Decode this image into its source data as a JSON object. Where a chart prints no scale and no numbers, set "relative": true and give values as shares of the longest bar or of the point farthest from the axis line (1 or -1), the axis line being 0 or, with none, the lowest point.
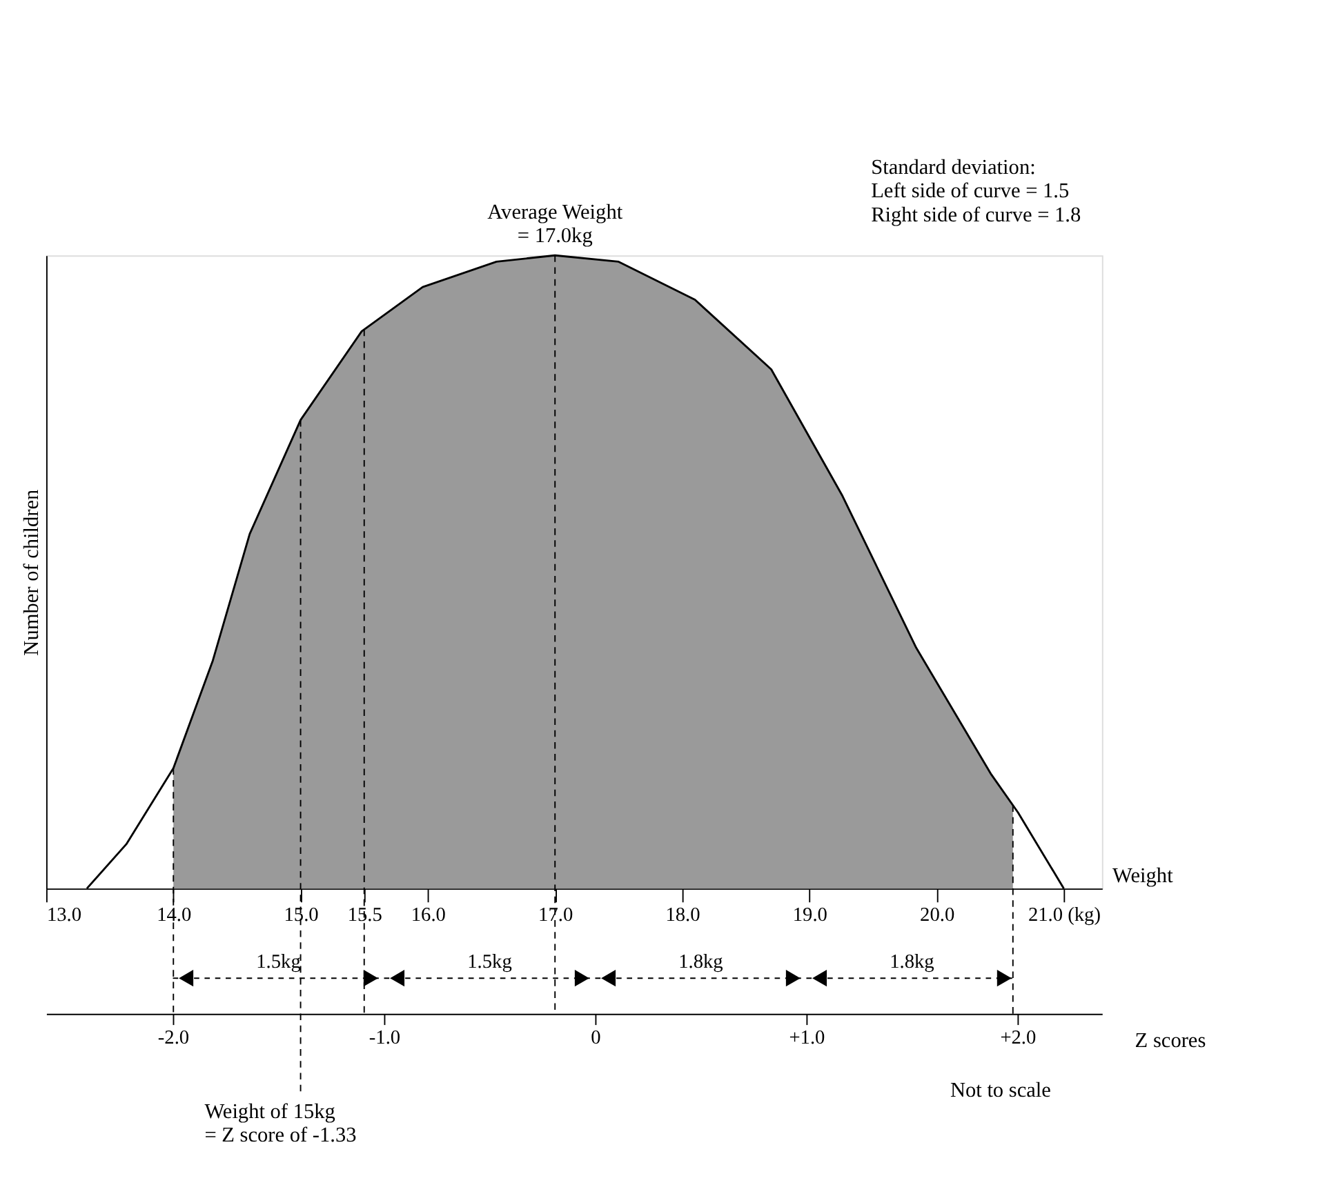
{
  "chart_data": {
    "type": "area",
    "relative": true,
    "xlabel": "Weight",
    "ylabel": "Number of children",
    "x2label": "Z scores",
    "xlim": [
      13.0,
      21.3
    ],
    "xticks": [
      {
        "value": 13.0,
        "label": "13.0"
      },
      {
        "value": 14.0,
        "label": "14.0"
      },
      {
        "value": 15.0,
        "label": "15.0"
      },
      {
        "value": 15.5,
        "label": "15.5"
      },
      {
        "value": 16.0,
        "label": "16.0"
      },
      {
        "value": 17.0,
        "label": "17.0"
      },
      {
        "value": 18.0,
        "label": "18.0"
      },
      {
        "value": 19.0,
        "label": "19.0"
      },
      {
        "value": 20.0,
        "label": "20.0"
      },
      {
        "value": 21.0,
        "label": "21.0 (kg)"
      }
    ],
    "x2lim": [
      -2.6,
      2.4
    ],
    "x2ticks": [
      {
        "value": -2.0,
        "label": "-2.0"
      },
      {
        "value": -1.0,
        "label": "-1.0"
      },
      0,
      {
        "value": 1.0,
        "label": "+1.0"
      },
      {
        "value": 2.0,
        "label": "+2.0"
      }
    ],
    "series": [
      {
        "type": "line",
        "color": "#000000",
        "x": [
          13.32,
          13.63,
          14.0,
          14.31,
          14.6,
          15.0,
          15.48,
          15.96,
          16.54,
          17.0,
          17.5,
          18.1,
          18.7,
          19.26,
          19.84,
          20.43,
          20.64,
          21.0
        ],
        "values": [
          0,
          0.07,
          0.19,
          0.36,
          0.56,
          0.74,
          0.88,
          0.95,
          0.99,
          1.0,
          0.99,
          0.93,
          0.82,
          0.62,
          0.38,
          0.18,
          0.12,
          0
        ]
      },
      {
        "color": "#9a9a9a",
        "x": [
          14.0,
          14.31,
          14.6,
          15.0,
          15.48,
          15.96,
          16.54,
          17.0,
          17.5,
          18.1,
          18.7,
          19.26,
          19.84,
          20.43,
          20.6
        ],
        "values": [
          0.19,
          0.36,
          0.56,
          0.74,
          0.88,
          0.95,
          0.99,
          1.0,
          0.99,
          0.93,
          0.82,
          0.62,
          0.38,
          0.18,
          0.13
        ]
      }
    ],
    "ref_lines": [
      {
        "axis": "x",
        "value": 14.0,
        "line_style": "dashed"
      },
      {
        "axis": "x",
        "value": 15.0,
        "line_style": "dashed"
      },
      {
        "axis": "x",
        "value": 15.5,
        "line_style": "dashed"
      },
      {
        "axis": "x",
        "value": 17.0,
        "line_style": "dashed"
      },
      {
        "axis": "x",
        "value": 20.6,
        "line_style": "dashed"
      }
    ],
    "annotations": [
      {
        "text": "Average Weight\n= 17.0kg",
        "x": 17.0,
        "y": 1.0
      },
      "1.5kg",
      "1.5kg",
      "1.8kg",
      "1.8kg",
      "Standard deviation:\nLeft side of curve = 1.5\nRight side of curve = 1.8",
      "Weight of 15kg\n= Z score of -1.33",
      "Not to scale"
    ],
    "grid": false
  }
}
